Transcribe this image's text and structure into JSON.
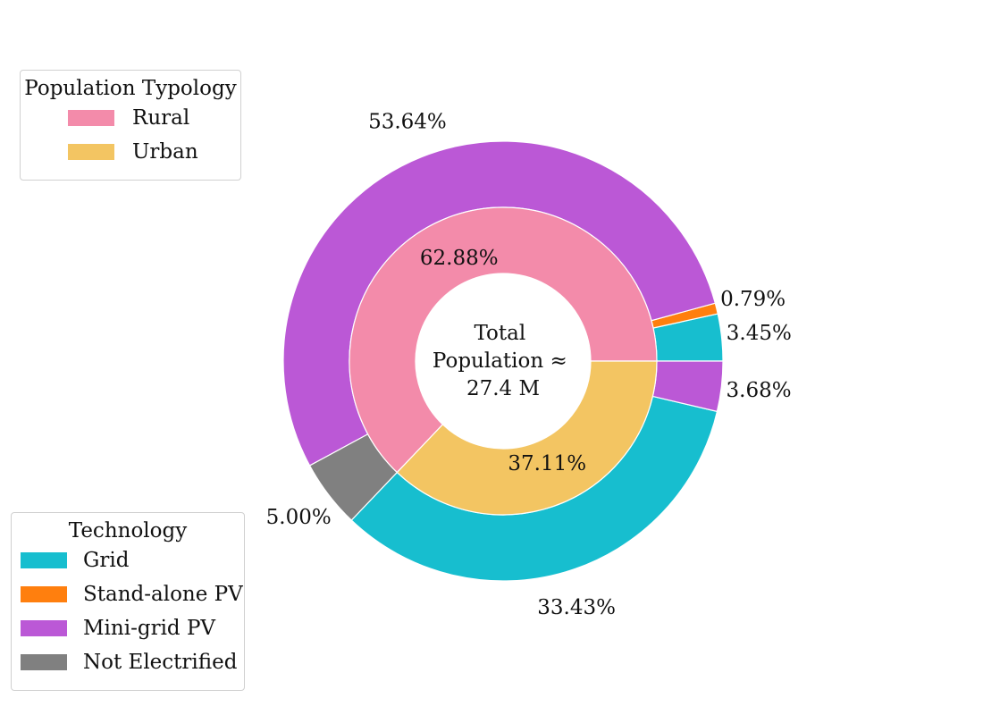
{
  "chart_data": {
    "type": "pie",
    "style": "nested-donut",
    "center_label": [
      "Total",
      "Population ≈",
      "27.4 M"
    ],
    "inner_ring": {
      "legend_title": "Population Typology",
      "slices": [
        {
          "name": "Rural",
          "value": 62.88,
          "label": "62.88%",
          "color": "#f38baa"
        },
        {
          "name": "Urban",
          "value": 37.11,
          "label": "37.11%",
          "color": "#f3c562"
        }
      ]
    },
    "outer_ring": {
      "legend_title": "Technology",
      "slices": [
        {
          "group": "Rural",
          "technology": "Grid",
          "value": 3.45,
          "label": "3.45%",
          "color": "#17becf"
        },
        {
          "group": "Rural",
          "technology": "Stand-alone PV",
          "value": 0.79,
          "label": "0.79%",
          "color": "#ff7f0e"
        },
        {
          "group": "Rural",
          "technology": "Mini-grid PV",
          "value": 53.64,
          "label": "53.64%",
          "color": "#bb58d6"
        },
        {
          "group": "Rural",
          "technology": "Not Electrified",
          "value": 5.0,
          "label": "5.00%",
          "color": "#808080"
        },
        {
          "group": "Urban",
          "technology": "Grid",
          "value": 33.43,
          "label": "33.43%",
          "color": "#17becf"
        },
        {
          "group": "Urban",
          "technology": "Mini-grid PV",
          "value": 3.68,
          "label": "3.68%",
          "color": "#bb58d6"
        }
      ]
    },
    "legends": {
      "typology": {
        "title": "Population Typology",
        "placement": "top-left",
        "items": [
          {
            "label": "Rural",
            "color": "#f38baa"
          },
          {
            "label": "Urban",
            "color": "#f3c562"
          }
        ]
      },
      "technology": {
        "title": "Technology",
        "placement": "bottom-left",
        "items": [
          {
            "label": "Grid",
            "color": "#17becf"
          },
          {
            "label": "Stand-alone PV",
            "color": "#ff7f0e"
          },
          {
            "label": "Mini-grid PV",
            "color": "#bb58d6"
          },
          {
            "label": "Not Electrified",
            "color": "#808080"
          }
        ]
      }
    }
  }
}
